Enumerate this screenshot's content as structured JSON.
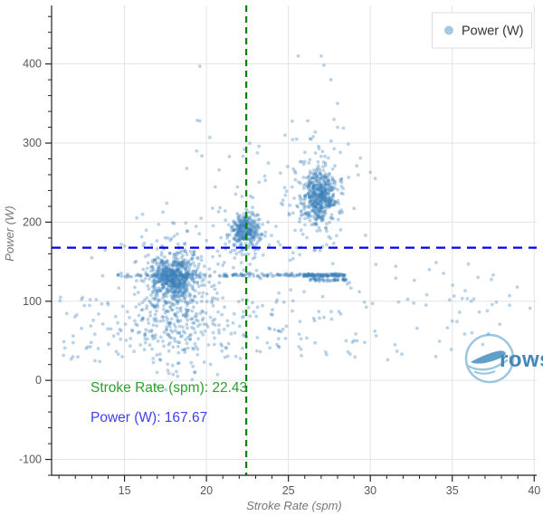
{
  "watermark": {
    "text": "rows"
  },
  "chart_data": {
    "type": "scatter",
    "title": "",
    "xlabel": "Stroke Rate (spm)",
    "ylabel": "Power (W)",
    "legend": {
      "label": "Power (W)",
      "position": "top-right"
    },
    "xlim": [
      10.55,
      40.15
    ],
    "ylim": [
      -120,
      474
    ],
    "x_ticks": [
      15,
      20,
      25,
      30,
      35,
      40
    ],
    "x_minor_step": 1,
    "y_ticks": [
      -100,
      0,
      100,
      200,
      300,
      400
    ],
    "y_minor_step": 20,
    "grid": true,
    "colors": {
      "marker": "#3b82bb",
      "grid": "#e3e3e3",
      "axis": "#222222",
      "tick_label": "#575757",
      "axis_title": "#757575",
      "crosshair_x": "#068406",
      "crosshair_y": "#0000ee",
      "annotation_x": "#2e9e2e",
      "annotation_y": "#4141ec",
      "legend_marker": "#a6c9e2",
      "watermark_line": "#9cc6e0",
      "watermark_fill": "#5f9fca",
      "watermark_text": "#4787b5"
    },
    "marker_opacity": 0.35,
    "crosshair": {
      "stroke_rate": 22.43,
      "power": 167.67
    },
    "annotations": [
      {
        "text": "Stroke Rate (spm):  22.43"
      },
      {
        "text": "Power (W): 167.67"
      }
    ],
    "point_cloud": {
      "seed": 7,
      "clusters": [
        {
          "n": 520,
          "cx": 18.0,
          "cy": 131,
          "sx": 0.6,
          "sy": 15
        },
        {
          "n": 300,
          "cx": 18.1,
          "cy": 116,
          "sx": 1.35,
          "sy": 38
        },
        {
          "n": 120,
          "cx": 18.4,
          "cy": 62,
          "sx": 2.1,
          "sy": 24
        },
        {
          "n": 270,
          "cx": 22.4,
          "cy": 190,
          "sx": 0.42,
          "sy": 10
        },
        {
          "n": 80,
          "cx": 22.2,
          "cy": 178,
          "sx": 1.0,
          "sy": 26
        },
        {
          "n": 430,
          "cx": 26.9,
          "cy": 234,
          "sx": 0.55,
          "sy": 16
        },
        {
          "n": 140,
          "cx": 26.7,
          "cy": 233,
          "sx": 1.15,
          "sy": 42
        }
      ],
      "uniform_blocks": [
        {
          "n": 120,
          "x": [
            10.7,
            25.0
          ],
          "y": [
            18,
            105
          ]
        },
        {
          "n": 40,
          "x": [
            24.0,
            30.0
          ],
          "y": [
            25,
            115
          ]
        },
        {
          "n": 55,
          "x": [
            28.5,
            40.1
          ],
          "y": [
            25,
            150
          ]
        },
        {
          "n": 22,
          "x": [
            19.0,
            29.0
          ],
          "y": [
            250,
            330
          ]
        }
      ],
      "streaks": [
        {
          "n": 170,
          "x": [
            14.6,
            28.6
          ],
          "y": 133,
          "jitter": 1.1
        },
        {
          "n": 90,
          "x": [
            25.9,
            28.5
          ],
          "y": 133,
          "jitter": 0.9
        },
        {
          "n": 45,
          "x": [
            26.2,
            28.6
          ],
          "y": 127,
          "jitter": 1.0
        }
      ],
      "outliers": [
        [
          19.6,
          397
        ],
        [
          19.6,
          328
        ],
        [
          19.4,
          290
        ],
        [
          18.8,
          268
        ],
        [
          25.6,
          410
        ],
        [
          27.0,
          410
        ],
        [
          27.6,
          380
        ],
        [
          28.0,
          350
        ],
        [
          28.0,
          320
        ],
        [
          24.8,
          310
        ],
        [
          23.2,
          296
        ],
        [
          29.4,
          281
        ],
        [
          30.0,
          263
        ],
        [
          30.3,
          255
        ],
        [
          21.4,
          283
        ],
        [
          16.1,
          210
        ],
        [
          14.8,
          172
        ],
        [
          13.0,
          155
        ],
        [
          33.6,
          140
        ],
        [
          37.5,
          133
        ],
        [
          35.0,
          75
        ],
        [
          36.2,
          60
        ],
        [
          38.5,
          95
        ],
        [
          31.5,
          45
        ],
        [
          34.0,
          30
        ]
      ]
    }
  }
}
